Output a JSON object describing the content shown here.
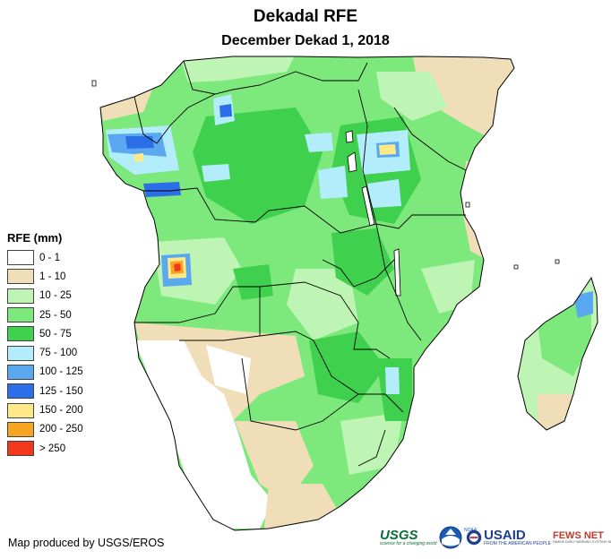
{
  "title": "Dekadal RFE",
  "subtitle": "December Dekad 1, 2018",
  "legend": {
    "title": "RFE (mm)",
    "items": [
      {
        "label": "0 - 1",
        "color": "#ffffff"
      },
      {
        "label": "1 - 10",
        "color": "#f0deb8"
      },
      {
        "label": "10 - 25",
        "color": "#bff5b4"
      },
      {
        "label": "25 - 50",
        "color": "#7de87b"
      },
      {
        "label": "50 - 75",
        "color": "#3fd04d"
      },
      {
        "label": "75 - 100",
        "color": "#b3ecfb"
      },
      {
        "label": "100 - 125",
        "color": "#5aa8f0"
      },
      {
        "label": "125 - 150",
        "color": "#2c6ee8"
      },
      {
        "label": "150 - 200",
        "color": "#fde98a"
      },
      {
        "label": "200 - 250",
        "color": "#f8a423"
      },
      {
        "label": "> 250",
        "color": "#f3371c"
      }
    ]
  },
  "credit": "Map produced by USGS/EROS",
  "logos": {
    "usgs": {
      "name": "USGS",
      "tagline": "science for a changing world"
    },
    "noaa": {
      "name": "NOAA"
    },
    "usaid": {
      "name": "USAID",
      "tagline": "FROM THE AMERICAN PEOPLE"
    },
    "fewsnet": {
      "name": "FEWS NET",
      "tagline": "FAMINE EARLY WARNING SYSTEMS NETWORK"
    }
  }
}
